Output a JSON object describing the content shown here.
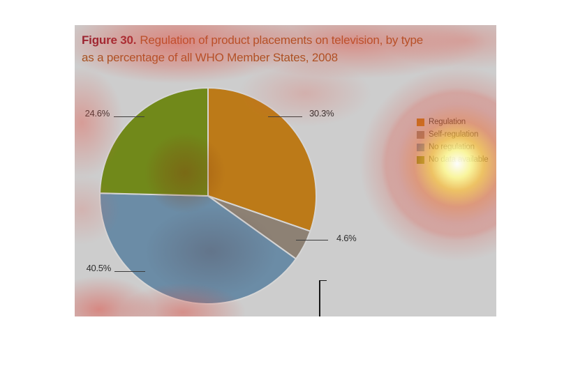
{
  "figure": {
    "title_prefix": "Figure 30.",
    "title_line1_rest": "Regulation of product placements on television, by type",
    "title_line2": "as a percentage of all WHO Member States, 2008"
  },
  "chart_data": {
    "type": "pie",
    "figure_number": "Figure 30",
    "title": "Regulation of product placements on television, by type as a percentage of all WHO Member States, 2008",
    "start_angle": "top",
    "direction": "clockwise",
    "legend_position": "right",
    "segments": [
      {
        "label": "Regulation",
        "value": 30.3,
        "pct_label": "30.3%",
        "color": "#bc7a18"
      },
      {
        "label": "Self-regulation",
        "value": 4.6,
        "pct_label": "4.6%",
        "color": "#8d8174"
      },
      {
        "label": "No regulation",
        "value": 40.5,
        "pct_label": "40.5%",
        "color": "#6b8ca6"
      },
      {
        "label": "No data available",
        "value": 24.6,
        "pct_label": "24.6%",
        "color": "#71891a"
      }
    ]
  },
  "colors": {
    "page_bg": "#ffffff",
    "panel_bg": "#cdcdcd",
    "figure_number_red": "#8f1d2e",
    "title_orange": "#a0521c",
    "pct_label_text": "#2e2e2e",
    "legend_text": "#3a3a3a",
    "leader_line": "#3c3c3c",
    "slice_separator": "#d6d6d6"
  }
}
